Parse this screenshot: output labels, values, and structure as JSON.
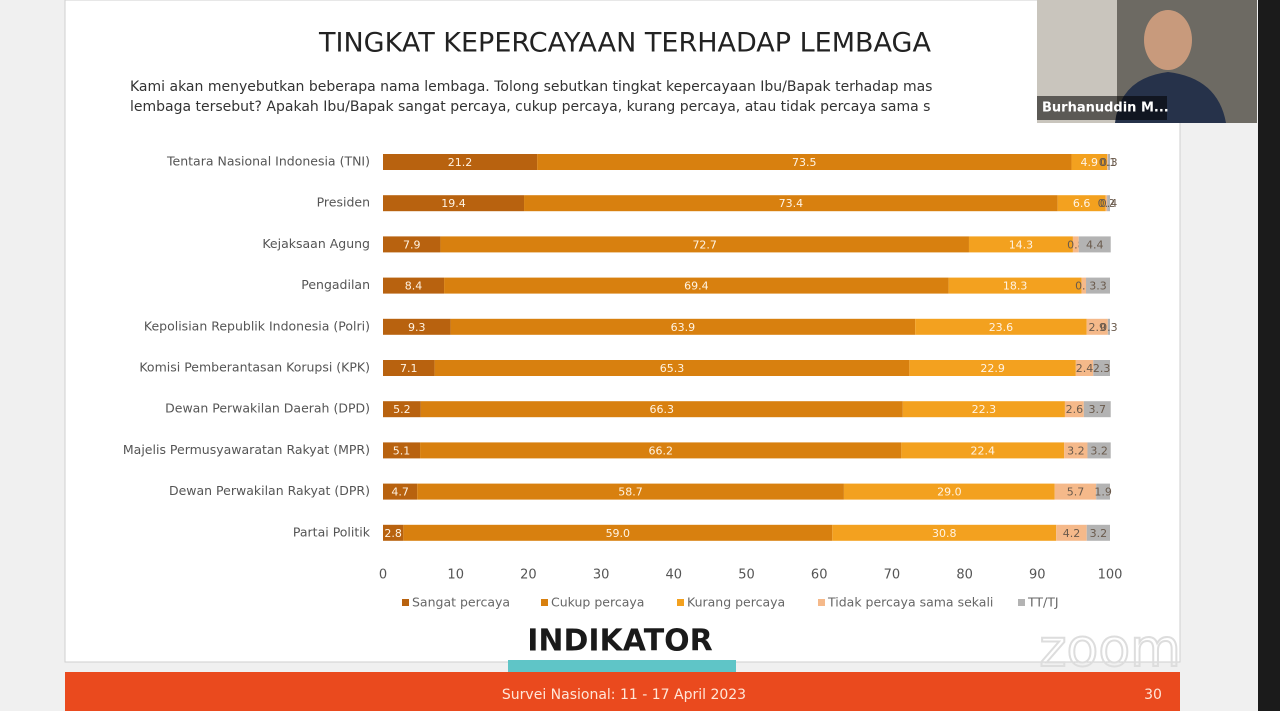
{
  "chart_data": {
    "type": "stacked-bar-horizontal",
    "title": "TINGKAT KEPERCAYAAN TERHADAP LEMBAGA",
    "categories": [
      "Tentara Nasional Indonesia (TNI)",
      "Presiden",
      "Kejaksaan Agung",
      "Pengadilan",
      "Kepolisian Republik Indonesia (Polri)",
      "Komisi Pemberantasan Korupsi (KPK)",
      "Dewan Perwakilan Daerah (DPD)",
      "Majelis Permusyawaratan Rakyat (MPR)",
      "Dewan Perwakilan Rakyat (DPR)",
      "Partai Politik"
    ],
    "series": [
      {
        "name": "Sangat percaya",
        "color": "#b8620f",
        "values": [
          21.2,
          19.4,
          7.9,
          8.4,
          9.3,
          7.1,
          5.2,
          5.1,
          4.7,
          2.8
        ]
      },
      {
        "name": "Cukup percaya",
        "color": "#d8800f",
        "values": [
          73.5,
          73.4,
          72.7,
          69.4,
          63.9,
          65.3,
          66.3,
          66.2,
          58.7,
          59
        ],
        "value_labels": [
          "73.5",
          "73.4",
          "72.7",
          "69.4",
          "63.9",
          "65.3",
          "66.3",
          "66.2",
          "58.7",
          "59.0"
        ]
      },
      {
        "name": "Kurang percaya",
        "color": "#f3a11f",
        "values": [
          4.9,
          6.6,
          14.3,
          18.3,
          23.6,
          22.9,
          22.3,
          22.4,
          29,
          30.8
        ],
        "value_labels": [
          "4.9",
          "6.6",
          "14.3",
          "18.3",
          "23.6",
          "22.9",
          "22.3",
          "22.4",
          "29.0",
          "30.8"
        ]
      },
      {
        "name": "Tidak percaya sama sekali",
        "color": "#f5b98a",
        "values": [
          0.1,
          0.2,
          0.8,
          0.6,
          2.9,
          2.4,
          2.6,
          3.2,
          5.7,
          4.2
        ]
      },
      {
        "name": "TT/TJ",
        "color": "#b3b3b3",
        "values": [
          0.3,
          0.4,
          4.4,
          3.3,
          0.3,
          2.3,
          3.7,
          3.2,
          1.9,
          3.2
        ]
      }
    ],
    "xlim": [
      0,
      100
    ],
    "xticks": [
      0,
      10,
      20,
      30,
      40,
      50,
      60,
      70,
      80,
      90,
      100
    ],
    "grid": false,
    "legend": "bottom"
  },
  "slide": {
    "question": [
      "Kami akan menyebutkan beberapa nama lembaga. Tolong sebutkan tingkat kepercayaan Ibu/Bapak terhadap mas",
      "lembaga tersebut? Apakah Ibu/Bapak sangat percaya, cukup percaya, kurang percaya, atau tidak percaya sama s"
    ],
    "logo": "INDIKATOR",
    "footer": "Survei Nasional: 11 - 17 April 2023",
    "page": 30
  },
  "video": {
    "name": "Burhanuddin M..."
  },
  "watermark": "zoom"
}
